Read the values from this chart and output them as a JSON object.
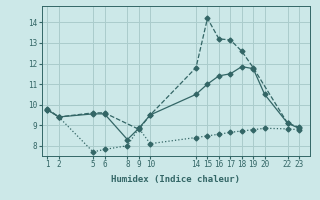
{
  "title": "",
  "xlabel": "Humidex (Indice chaleur)",
  "ylabel": "",
  "bg_color": "#cce8e8",
  "line_color": "#336666",
  "grid_color": "#aacccc",
  "xticks": [
    1,
    2,
    5,
    6,
    8,
    9,
    10,
    14,
    15,
    16,
    17,
    18,
    19,
    20,
    22,
    23
  ],
  "yticks": [
    8,
    9,
    10,
    11,
    12,
    13,
    14
  ],
  "xlim": [
    0.5,
    24
  ],
  "ylim": [
    7.5,
    14.8
  ],
  "series": [
    {
      "x": [
        1,
        2,
        5,
        6,
        9,
        10,
        14,
        15,
        16,
        17,
        18,
        19,
        22,
        23
      ],
      "y": [
        9.8,
        9.4,
        9.6,
        9.6,
        8.8,
        9.5,
        11.8,
        14.2,
        13.2,
        13.15,
        12.6,
        11.8,
        9.1,
        8.9
      ],
      "style": "--",
      "marker": "D",
      "markersize": 2.5
    },
    {
      "x": [
        1,
        2,
        5,
        6,
        8,
        9,
        10,
        14,
        15,
        16,
        17,
        18,
        19,
        20,
        22,
        23
      ],
      "y": [
        9.75,
        9.4,
        9.55,
        9.55,
        8.3,
        8.85,
        9.5,
        10.5,
        11.0,
        11.4,
        11.5,
        11.85,
        11.75,
        10.5,
        9.1,
        8.85
      ],
      "style": "-",
      "marker": "D",
      "markersize": 2.5
    },
    {
      "x": [
        1,
        2,
        5,
        6,
        8,
        9,
        10,
        14,
        15,
        16,
        17,
        18,
        19,
        20,
        22,
        23
      ],
      "y": [
        9.75,
        9.4,
        7.7,
        7.82,
        8.0,
        8.85,
        8.1,
        8.4,
        8.48,
        8.56,
        8.65,
        8.72,
        8.78,
        8.85,
        8.82,
        8.78
      ],
      "style": ":",
      "marker": "D",
      "markersize": 2.5
    }
  ]
}
